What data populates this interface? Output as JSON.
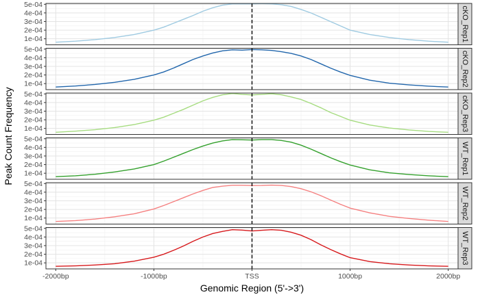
{
  "chart_data": {
    "type": "line",
    "facet_layout": "stacked panels, strip labels on right",
    "xlabel": "Genomic Region (5'->3')",
    "ylabel": "Peak Count Frequency",
    "xlim": [
      -2100,
      2100
    ],
    "x_ticks": [
      {
        "value": -2000,
        "label": "-2000bp"
      },
      {
        "value": -1000,
        "label": "-1000bp"
      },
      {
        "value": 0,
        "label": "TSS"
      },
      {
        "value": 1000,
        "label": "1000bp"
      },
      {
        "value": 2000,
        "label": "2000bp"
      }
    ],
    "ylim": [
      3e-05,
      0.00051
    ],
    "y_ticks": [
      {
        "value": 0.0001,
        "label": "1e-04"
      },
      {
        "value": 0.0002,
        "label": "2e-04"
      },
      {
        "value": 0.0003,
        "label": "3e-04"
      },
      {
        "value": 0.0004,
        "label": "4e-04"
      },
      {
        "value": 0.0005,
        "label": "5e-04"
      }
    ],
    "reference_line": {
      "x": 0,
      "style": "dashed",
      "color": "#000000"
    },
    "grid": true,
    "x": [
      -2000,
      -1800,
      -1600,
      -1400,
      -1200,
      -1000,
      -900,
      -800,
      -700,
      -600,
      -500,
      -400,
      -300,
      -200,
      -100,
      0,
      100,
      200,
      300,
      400,
      500,
      600,
      700,
      800,
      900,
      1000,
      1200,
      1400,
      1600,
      1800,
      2000
    ],
    "series": [
      {
        "strip": "cKO_Rep1",
        "color": "#9ecae1",
        "values": [
          6e-05,
          7.2e-05,
          9e-05,
          0.000115,
          0.00015,
          0.0002,
          0.000235,
          0.00028,
          0.000325,
          0.00037,
          0.00042,
          0.00046,
          0.00049,
          0.000505,
          0.000505,
          0.000505,
          0.000508,
          0.000505,
          0.000495,
          0.000475,
          0.00044,
          0.0004,
          0.00035,
          0.0003,
          0.00025,
          0.0002,
          0.00015,
          0.000115,
          9e-05,
          7.2e-05,
          6e-05
        ]
      },
      {
        "strip": "cKO_Rep2",
        "color": "#2166ac",
        "values": [
          6e-05,
          7.2e-05,
          9e-05,
          0.000115,
          0.00015,
          0.0002,
          0.000235,
          0.00028,
          0.00033,
          0.00038,
          0.00042,
          0.000455,
          0.00048,
          0.000492,
          0.000488,
          0.000495,
          0.000492,
          0.000485,
          0.00047,
          0.00045,
          0.00042,
          0.00038,
          0.00033,
          0.00028,
          0.000235,
          0.000195,
          0.00014,
          0.000105,
          8.5e-05,
          7e-05,
          6e-05
        ]
      },
      {
        "strip": "cKO_Rep3",
        "color": "#a6dc80",
        "values": [
          5.5e-05,
          6.8e-05,
          8.5e-05,
          0.00011,
          0.000145,
          0.000195,
          0.00023,
          0.000275,
          0.00032,
          0.00037,
          0.00042,
          0.00046,
          0.00049,
          0.000505,
          0.000495,
          0.000488,
          0.000495,
          0.000502,
          0.00049,
          0.000465,
          0.000435,
          0.00039,
          0.00034,
          0.000285,
          0.00024,
          0.000195,
          0.00014,
          0.000105,
          8.2e-05,
          6.5e-05,
          5.5e-05
        ]
      },
      {
        "strip": "WT_Rep1",
        "color": "#33a02c",
        "values": [
          6e-05,
          7e-05,
          8.8e-05,
          0.000115,
          0.00015,
          0.0002,
          0.00024,
          0.000285,
          0.00033,
          0.000375,
          0.000415,
          0.00045,
          0.000475,
          0.00049,
          0.000488,
          0.000485,
          0.00049,
          0.00049,
          0.00048,
          0.00046,
          0.000425,
          0.00038,
          0.00033,
          0.00028,
          0.000235,
          0.000195,
          0.00014,
          0.000105,
          8.5e-05,
          7e-05,
          6e-05
        ]
      },
      {
        "strip": "WT_Rep2",
        "color": "#f58080",
        "values": [
          6e-05,
          7e-05,
          8.8e-05,
          0.000115,
          0.00015,
          0.000205,
          0.000245,
          0.00029,
          0.000335,
          0.00038,
          0.00042,
          0.000455,
          0.00047,
          0.00048,
          0.00048,
          0.000477,
          0.000478,
          0.000482,
          0.000478,
          0.000465,
          0.00044,
          0.000405,
          0.00036,
          0.00031,
          0.00026,
          0.000215,
          0.00016,
          0.00012,
          9.5e-05,
          7.5e-05,
          6e-05
        ]
      },
      {
        "strip": "WT_Rep3",
        "color": "#d7191c",
        "values": [
          6e-05,
          6.5e-05,
          7.5e-05,
          9e-05,
          0.00012,
          0.000165,
          0.0002,
          0.000245,
          0.000295,
          0.00035,
          0.0004,
          0.00044,
          0.000465,
          0.000485,
          0.00048,
          0.00047,
          0.000478,
          0.000485,
          0.000478,
          0.000455,
          0.00042,
          0.00037,
          0.00031,
          0.000255,
          0.000205,
          0.00016,
          0.000115,
          9e-05,
          7.5e-05,
          6.5e-05,
          6e-05
        ]
      }
    ]
  }
}
